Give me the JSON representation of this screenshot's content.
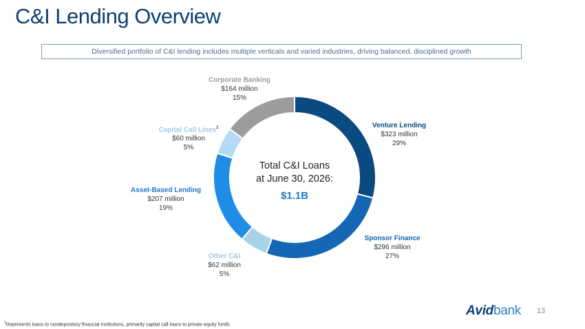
{
  "title": "C&I Lending Overview",
  "subtitle": "Diversified portfolio of C&I lending includes multiple verticals and varied industries, driving balanced, disciplined growth",
  "chart_data": {
    "type": "pie",
    "donut": true,
    "center": {
      "line1": "Total C&I Loans",
      "line2": "at June 30, 2026:",
      "value": "$1.1B"
    },
    "slices": [
      {
        "name": "Venture Lending",
        "footnote": "",
        "value_label": "$323 million",
        "value": 323,
        "percent": "29%",
        "color": "#0b4a80",
        "label_color": "#0b4a80"
      },
      {
        "name": "Sponsor Finance",
        "footnote": "",
        "value_label": "$296 million",
        "value": 296,
        "percent": "27%",
        "color": "#1566b4",
        "label_color": "#1566b4"
      },
      {
        "name": "Other C&I",
        "footnote": "",
        "value_label": "$62 million",
        "value": 62,
        "percent": "5%",
        "color": "#a8d2e6",
        "label_color": "#a8c8dc"
      },
      {
        "name": "Asset-Based Lending",
        "footnote": "",
        "value_label": "$207 million",
        "value": 207,
        "percent": "19%",
        "color": "#1f8de6",
        "label_color": "#1f78c8"
      },
      {
        "name": "Capital Call Lines",
        "footnote": "1",
        "value_label": "$60 million",
        "value": 60,
        "percent": "5%",
        "color": "#b5daf7",
        "label_color": "#9ccbee"
      },
      {
        "name": "Corporate Banking",
        "footnote": "",
        "value_label": "$164 million",
        "value": 164,
        "percent": "15%",
        "color": "#9c9c9c",
        "label_color": "#9c9c9c"
      }
    ]
  },
  "logo": {
    "part1": "Avid",
    "part2": "bank"
  },
  "page_number": "13",
  "footnote": {
    "marker": "1",
    "text": "Represents loans to nondepository financial institutions, primarily capital call loans to private equity funds"
  }
}
